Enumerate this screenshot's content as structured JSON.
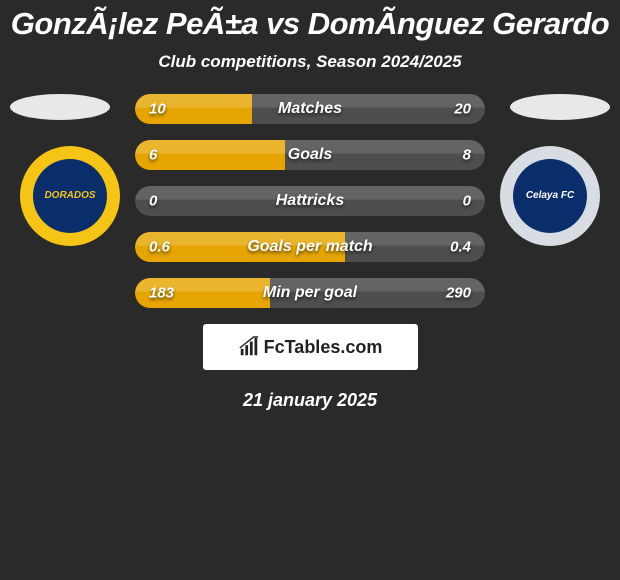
{
  "title": {
    "text": "GonzÃ¡lez PeÃ±a vs DomÃ­nguez Gerardo",
    "fontsize": 31,
    "color": "#ffffff"
  },
  "subtitle": {
    "text": "Club competitions, Season 2024/2025",
    "fontsize": 17,
    "color": "#ffffff"
  },
  "background_color": "#2a2a2a",
  "left_marker_color": "#e8e8e8",
  "right_marker_color": "#e8e8e8",
  "left_badge": {
    "outer_color": "#f5c415",
    "inner_color": "#0a2d6b",
    "text": "DORADOS",
    "text_color": "#f5c415"
  },
  "right_badge": {
    "outer_color": "#d8dde3",
    "inner_color": "#0a2d6b",
    "text": "Celaya FC",
    "text_color": "#ffffff"
  },
  "bars": [
    {
      "label": "Matches",
      "left_value": "10",
      "right_value": "20",
      "fill_fraction": 0.333,
      "label_fontsize": 16,
      "value_fontsize": 15
    },
    {
      "label": "Goals",
      "left_value": "6",
      "right_value": "8",
      "fill_fraction": 0.429,
      "label_fontsize": 16,
      "value_fontsize": 15
    },
    {
      "label": "Hattricks",
      "left_value": "0",
      "right_value": "0",
      "fill_fraction": 0.0,
      "label_fontsize": 16,
      "value_fontsize": 15
    },
    {
      "label": "Goals per match",
      "left_value": "0.6",
      "right_value": "0.4",
      "fill_fraction": 0.6,
      "label_fontsize": 16,
      "value_fontsize": 15
    },
    {
      "label": "Min per goal",
      "left_value": "183",
      "right_value": "290",
      "fill_fraction": 0.387,
      "label_fontsize": 16,
      "value_fontsize": 15
    }
  ],
  "bar_bg_color": "#4e4e4e",
  "bar_fill_color": "#e6a500",
  "bar_highlight_top": "rgba(255,255,255,0.12)",
  "logo": {
    "text": "FcTables.com",
    "fontsize": 18,
    "bg_color": "#ffffff",
    "text_color": "#222222"
  },
  "date": {
    "text": "21 january 2025",
    "fontsize": 18,
    "color": "#ffffff"
  }
}
